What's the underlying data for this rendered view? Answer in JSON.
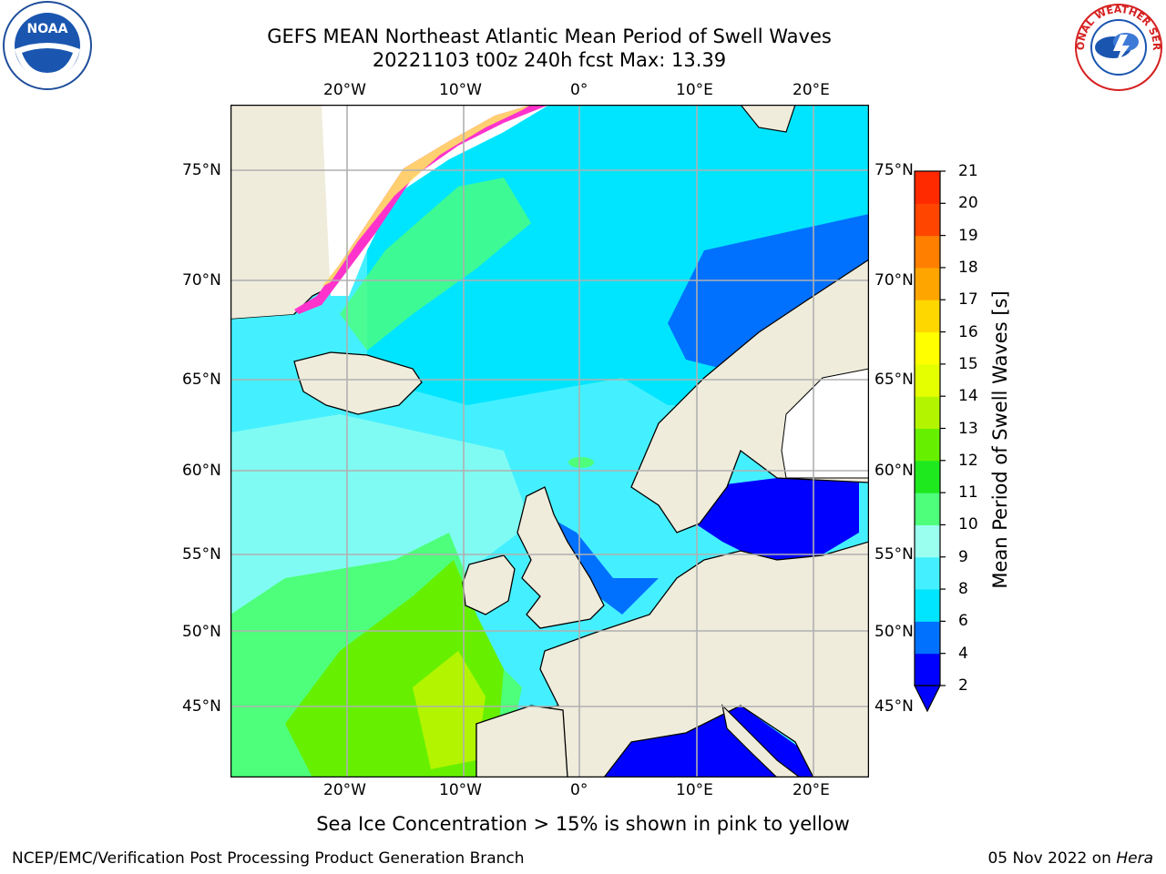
{
  "header": {
    "title_line1": "GEFS MEAN Northeast Atlantic Mean Period of Swell Waves",
    "title_line2": "20221103 t00z 240h fcst   Max: 13.39"
  },
  "map": {
    "lon_ticks": [
      "20°W",
      "10°W",
      "0°",
      "10°E",
      "20°E"
    ],
    "lat_ticks": [
      "75°N",
      "70°N",
      "65°N",
      "60°N",
      "55°N",
      "50°N",
      "45°N"
    ],
    "colors": {
      "land": "#efecdc",
      "ice_pink": "#ff33cc",
      "ice_yellow": "#ffe066",
      "grid": "#b0b0b0"
    }
  },
  "colorbar": {
    "title": "Mean Period of Swell Waves [s]",
    "levels": [
      "2",
      "4",
      "6",
      "8",
      "9",
      "10",
      "11",
      "12",
      "13",
      "14",
      "15",
      "16",
      "17",
      "18",
      "19",
      "20",
      "21"
    ],
    "colors": [
      "#0000ff",
      "#0070ff",
      "#00e5ff",
      "#44f0ff",
      "#9affee",
      "#4dff7a",
      "#1ee81e",
      "#66f000",
      "#b3f500",
      "#e6ff00",
      "#ffff00",
      "#ffd700",
      "#ffa500",
      "#ff7f00",
      "#ff4500",
      "#ff2a00",
      "#ff0000"
    ]
  },
  "note": "Sea Ice Concentration > 15% is shown in pink to yellow",
  "footer": {
    "left": "NCEP/EMC/Verification Post Processing Product Generation Branch",
    "right_prefix": "05 Nov 2022 on ",
    "right_host": "Hera"
  },
  "logos": {
    "noaa": "NOAA",
    "nws": "NATIONAL WEATHER SERVICE"
  }
}
